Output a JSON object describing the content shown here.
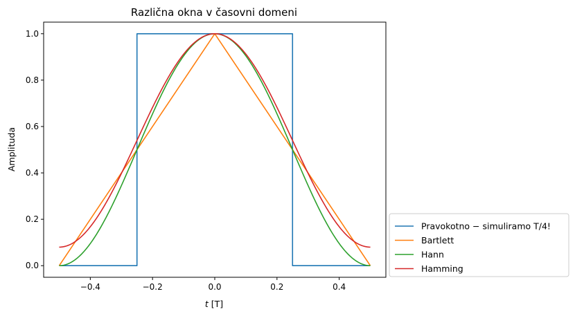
{
  "chart_data": {
    "type": "line",
    "title": "Različna okna v časovni domeni",
    "xlabel_italic": "t",
    "xlabel_unit": "[T]",
    "ylabel": "Amplituda",
    "xlim": [
      -0.55,
      0.55
    ],
    "ylim": [
      -0.05,
      1.05
    ],
    "xticks": [
      -0.4,
      -0.2,
      0.0,
      0.2,
      0.4
    ],
    "xtick_labels": [
      "−0.4",
      "−0.2",
      "0.0",
      "0.2",
      "0.4"
    ],
    "yticks": [
      0.0,
      0.2,
      0.4,
      0.6,
      0.8,
      1.0
    ],
    "ytick_labels": [
      "0.0",
      "0.2",
      "0.4",
      "0.6",
      "0.8",
      "1.0"
    ],
    "grid": false,
    "legend_placement": "outside-lower-right",
    "series": [
      {
        "name": "Pravokotno − simuliramo T/4!",
        "color": "#1f77b4",
        "kind": "rectangular",
        "x": [
          -0.5,
          -0.25,
          -0.25,
          0.25,
          0.25,
          0.5
        ],
        "y": [
          0.0,
          0.0,
          1.0,
          1.0,
          0.0,
          0.0
        ]
      },
      {
        "name": "Bartlett",
        "color": "#ff7f0e",
        "kind": "bartlett",
        "x": [
          -0.5,
          0.0,
          0.5
        ],
        "y": [
          0.0,
          1.0,
          0.0
        ]
      },
      {
        "name": "Hann",
        "color": "#2ca02c",
        "kind": "hann",
        "x": [
          -0.5,
          -0.4,
          -0.3,
          -0.2,
          -0.1,
          0.0,
          0.1,
          0.2,
          0.3,
          0.4,
          0.5
        ],
        "y": [
          0.0,
          0.095,
          0.345,
          0.655,
          0.905,
          1.0,
          0.905,
          0.655,
          0.345,
          0.095,
          0.0
        ]
      },
      {
        "name": "Hamming",
        "color": "#d62728",
        "kind": "hamming",
        "x": [
          -0.5,
          -0.4,
          -0.3,
          -0.2,
          -0.1,
          0.0,
          0.1,
          0.2,
          0.3,
          0.4,
          0.5
        ],
        "y": [
          0.08,
          0.167,
          0.398,
          0.682,
          0.912,
          1.0,
          0.912,
          0.682,
          0.398,
          0.167,
          0.08
        ]
      }
    ]
  }
}
